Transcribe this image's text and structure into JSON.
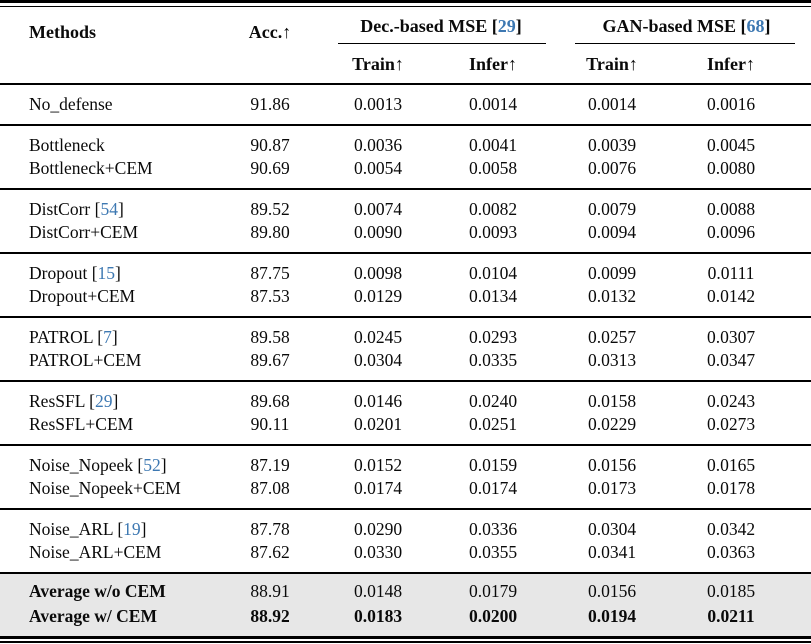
{
  "colors": {
    "citation_blue": "#3D78B2",
    "highlight_bg": "#E7E7E7",
    "rule_black": "#000000",
    "text_black": "#0a0a0a"
  },
  "table": {
    "header": {
      "methods_label": "Methods",
      "acc_label": "Acc.↑",
      "group_dec": {
        "label": "Dec.-based MSE",
        "cite": "29"
      },
      "group_gan": {
        "label": "GAN-based MSE",
        "cite": "68"
      },
      "sub_labels": {
        "dec_train": "Train↑",
        "dec_infer": "Infer↑",
        "gan_train": "Train↑",
        "gan_infer": "Infer↑"
      }
    },
    "groups": [
      {
        "highlight": false,
        "rows": [
          {
            "method": "No_defense",
            "cite": "",
            "label_bold": false,
            "values_bold": false,
            "values": [
              "91.86",
              "0.0013",
              "0.0014",
              "0.0014",
              "0.0016"
            ]
          }
        ]
      },
      {
        "highlight": false,
        "rows": [
          {
            "method": "Bottleneck",
            "cite": "",
            "label_bold": false,
            "values_bold": false,
            "values": [
              "90.87",
              "0.0036",
              "0.0041",
              "0.0039",
              "0.0045"
            ]
          },
          {
            "method": "Bottleneck+CEM",
            "cite": "",
            "label_bold": false,
            "values_bold": false,
            "values": [
              "90.69",
              "0.0054",
              "0.0058",
              "0.0076",
              "0.0080"
            ]
          }
        ]
      },
      {
        "highlight": false,
        "rows": [
          {
            "method": "DistCorr",
            "cite": "54",
            "label_bold": false,
            "values_bold": false,
            "values": [
              "89.52",
              "0.0074",
              "0.0082",
              "0.0079",
              "0.0088"
            ]
          },
          {
            "method": "DistCorr+CEM",
            "cite": "",
            "label_bold": false,
            "values_bold": false,
            "values": [
              "89.80",
              "0.0090",
              "0.0093",
              "0.0094",
              "0.0096"
            ]
          }
        ]
      },
      {
        "highlight": false,
        "rows": [
          {
            "method": "Dropout",
            "cite": "15",
            "label_bold": false,
            "values_bold": false,
            "values": [
              "87.75",
              "0.0098",
              "0.0104",
              "0.0099",
              "0.0111"
            ]
          },
          {
            "method": "Dropout+CEM",
            "cite": "",
            "label_bold": false,
            "values_bold": false,
            "values": [
              "87.53",
              "0.0129",
              "0.0134",
              "0.0132",
              "0.0142"
            ]
          }
        ]
      },
      {
        "highlight": false,
        "rows": [
          {
            "method": "PATROL",
            "cite": "7",
            "label_bold": false,
            "values_bold": false,
            "values": [
              "89.58",
              "0.0245",
              "0.0293",
              "0.0257",
              "0.0307"
            ]
          },
          {
            "method": "PATROL+CEM",
            "cite": "",
            "label_bold": false,
            "values_bold": false,
            "values": [
              "89.67",
              "0.0304",
              "0.0335",
              "0.0313",
              "0.0347"
            ]
          }
        ]
      },
      {
        "highlight": false,
        "rows": [
          {
            "method": "ResSFL",
            "cite": "29",
            "label_bold": false,
            "values_bold": false,
            "values": [
              "89.68",
              "0.0146",
              "0.0240",
              "0.0158",
              "0.0243"
            ]
          },
          {
            "method": "ResSFL+CEM",
            "cite": "",
            "label_bold": false,
            "values_bold": false,
            "values": [
              "90.11",
              "0.0201",
              "0.0251",
              "0.0229",
              "0.0273"
            ]
          }
        ]
      },
      {
        "highlight": false,
        "rows": [
          {
            "method": "Noise_Nopeek",
            "cite": "52",
            "label_bold": false,
            "values_bold": false,
            "values": [
              "87.19",
              "0.0152",
              "0.0159",
              "0.0156",
              "0.0165"
            ]
          },
          {
            "method": "Noise_Nopeek+CEM",
            "cite": "",
            "label_bold": false,
            "values_bold": false,
            "values": [
              "87.08",
              "0.0174",
              "0.0174",
              "0.0173",
              "0.0178"
            ]
          }
        ]
      },
      {
        "highlight": false,
        "rows": [
          {
            "method": "Noise_ARL",
            "cite": "19",
            "label_bold": false,
            "values_bold": false,
            "values": [
              "87.78",
              "0.0290",
              "0.0336",
              "0.0304",
              "0.0342"
            ]
          },
          {
            "method": "Noise_ARL+CEM",
            "cite": "",
            "label_bold": false,
            "values_bold": false,
            "values": [
              "87.62",
              "0.0330",
              "0.0355",
              "0.0341",
              "0.0363"
            ]
          }
        ]
      },
      {
        "highlight": true,
        "rows": [
          {
            "method": "Average w/o CEM",
            "cite": "",
            "label_bold": true,
            "values_bold": false,
            "values": [
              "88.91",
              "0.0148",
              "0.0179",
              "0.0156",
              "0.0185"
            ]
          },
          {
            "method": "Average w/ CEM",
            "cite": "",
            "label_bold": true,
            "values_bold": true,
            "values": [
              "88.92",
              "0.0183",
              "0.0200",
              "0.0194",
              "0.0211"
            ]
          }
        ]
      }
    ]
  }
}
